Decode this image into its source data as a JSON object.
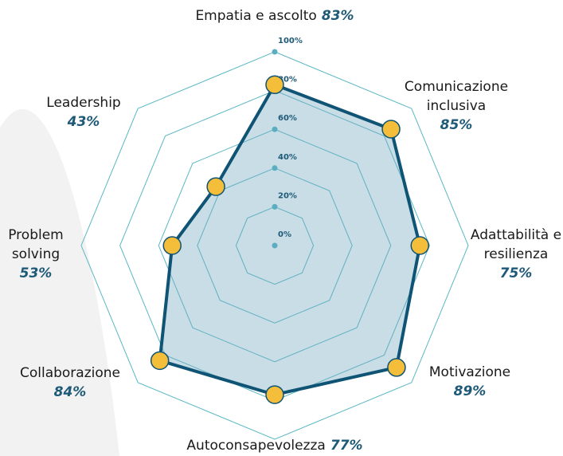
{
  "chart_data": {
    "type": "radar",
    "categories": [
      "Empatia e ascolto",
      "Comunicazione inclusiva",
      "Adattabilità e resilienza",
      "Motivazione",
      "Autoconsapevolezza",
      "Collaborazione",
      "Problem solving",
      "Leadership"
    ],
    "values": [
      83,
      85,
      75,
      89,
      77,
      84,
      53,
      43
    ],
    "value_labels": [
      "83%",
      "85%",
      "75%",
      "89%",
      "77%",
      "84%",
      "53%",
      "43%"
    ],
    "ylim": [
      0,
      100
    ],
    "yticks": [
      {
        "value": 0,
        "label": "0%"
      },
      {
        "value": 20,
        "label": "20%"
      },
      {
        "value": 40,
        "label": "40%"
      },
      {
        "value": 60,
        "label": "60%"
      },
      {
        "value": 80,
        "label": "80%"
      },
      {
        "value": 100,
        "label": "100%"
      }
    ],
    "color": "#0f5474",
    "marker_color": "#f4bd3a",
    "grid_color": "#5bb8c4"
  }
}
